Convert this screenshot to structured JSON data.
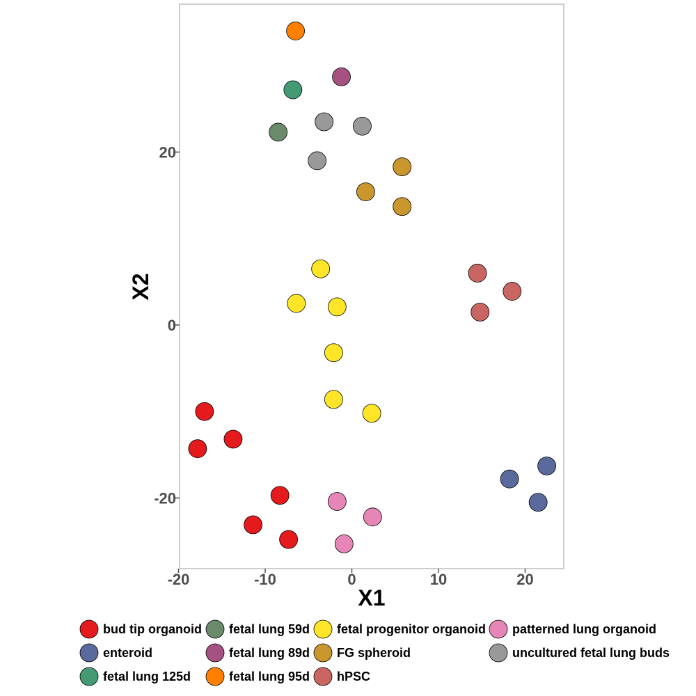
{
  "chart_data": {
    "type": "scatter",
    "xlabel": "X1",
    "ylabel": "X2",
    "xlim": [
      -20,
      24
    ],
    "ylim": [
      -28,
      37
    ],
    "xticks": [
      {
        "value": -20,
        "label": "-20"
      },
      {
        "value": -10,
        "label": "-10"
      },
      {
        "value": 0,
        "label": "0"
      },
      {
        "value": 10,
        "label": "10"
      },
      {
        "value": 20,
        "label": "20"
      }
    ],
    "yticks": [
      {
        "value": -20,
        "label": "-20"
      },
      {
        "value": 0,
        "label": "0"
      },
      {
        "value": 20,
        "label": "20"
      }
    ],
    "grid": false,
    "legend_position": "bottom",
    "series": [
      {
        "name": "bud tip organoid",
        "color": "#e41a1c",
        "points": [
          [
            -17,
            -10
          ],
          [
            -13.7,
            -13.2
          ],
          [
            -17.8,
            -14.3
          ],
          [
            -8.3,
            -19.7
          ],
          [
            -11.4,
            -23.1
          ],
          [
            -7.3,
            -24.8
          ]
        ]
      },
      {
        "name": "enteroid",
        "color": "#5a6a9c",
        "points": [
          [
            22.5,
            -16.3
          ],
          [
            18.2,
            -17.8
          ],
          [
            21.5,
            -20.5
          ]
        ]
      },
      {
        "name": "fetal lung 125d",
        "color": "#449a72",
        "points": [
          [
            -6.8,
            27.2
          ]
        ]
      },
      {
        "name": "fetal lung 59d",
        "color": "#6b8a6b",
        "points": [
          [
            -8.5,
            22.3
          ]
        ]
      },
      {
        "name": "fetal lung 89d",
        "color": "#a55283",
        "points": [
          [
            -1.2,
            28.7
          ]
        ]
      },
      {
        "name": "fetal lung 95d",
        "color": "#ff7f00",
        "points": [
          [
            -6.5,
            34.0
          ]
        ]
      },
      {
        "name": "fetal progenitor organoid",
        "color": "#ffe527",
        "points": [
          [
            -3.6,
            6.5
          ],
          [
            -6.4,
            2.5
          ],
          [
            -1.7,
            2.1
          ],
          [
            -2.1,
            -3.2
          ],
          [
            -2.1,
            -8.6
          ],
          [
            2.3,
            -10.2
          ]
        ]
      },
      {
        "name": "FG spheroid",
        "color": "#ca962e",
        "points": [
          [
            5.8,
            18.3
          ],
          [
            1.6,
            15.4
          ],
          [
            5.8,
            13.7
          ]
        ]
      },
      {
        "name": "hPSC",
        "color": "#c96662",
        "points": [
          [
            14.5,
            6.0
          ],
          [
            18.5,
            3.9
          ],
          [
            14.8,
            1.5
          ]
        ]
      },
      {
        "name": "patterned lung organoid",
        "color": "#e586b6",
        "points": [
          [
            -1.7,
            -20.4
          ],
          [
            2.4,
            -22.2
          ],
          [
            -0.9,
            -25.3
          ]
        ]
      },
      {
        "name": "uncultured fetal lung buds",
        "color": "#999999",
        "points": [
          [
            -3.2,
            23.5
          ],
          [
            1.2,
            23.0
          ],
          [
            -4.0,
            19.0
          ]
        ]
      }
    ]
  }
}
